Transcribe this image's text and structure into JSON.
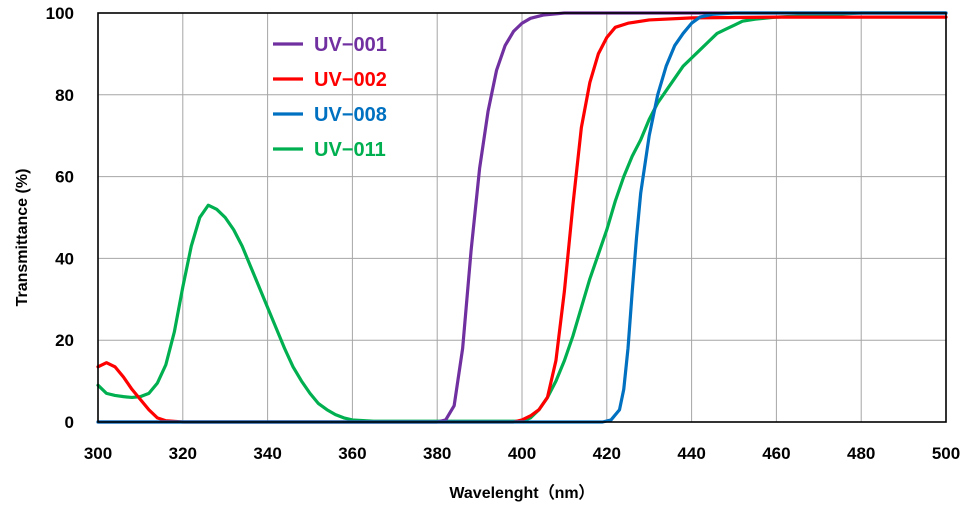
{
  "chart_data": {
    "type": "line",
    "xlabel": "Wavelenght（nm）",
    "ylabel": "Transmittance (%)",
    "xlim": [
      300,
      500
    ],
    "ylim": [
      0,
      100
    ],
    "x_ticks": [
      300,
      320,
      340,
      360,
      380,
      400,
      420,
      440,
      460,
      480,
      500
    ],
    "y_ticks": [
      0,
      20,
      40,
      60,
      80,
      100
    ],
    "grid": true,
    "legend_position": "top-left",
    "series": [
      {
        "name": "UV−001",
        "color": "#7030a0",
        "points": [
          [
            300,
            0
          ],
          [
            380,
            0
          ],
          [
            382,
            0.5
          ],
          [
            384,
            4
          ],
          [
            386,
            18
          ],
          [
            388,
            42
          ],
          [
            390,
            62
          ],
          [
            392,
            76
          ],
          [
            394,
            86
          ],
          [
            396,
            92
          ],
          [
            398,
            95.5
          ],
          [
            400,
            97.5
          ],
          [
            402,
            98.7
          ],
          [
            405,
            99.5
          ],
          [
            410,
            100
          ],
          [
            500,
            100
          ]
        ]
      },
      {
        "name": "UV−002",
        "color": "#ff0000",
        "points": [
          [
            300,
            13.5
          ],
          [
            302,
            14.5
          ],
          [
            304,
            13.5
          ],
          [
            306,
            11
          ],
          [
            308,
            8
          ],
          [
            310,
            5.5
          ],
          [
            312,
            3
          ],
          [
            314,
            1
          ],
          [
            316,
            0.3
          ],
          [
            320,
            0
          ],
          [
            398,
            0
          ],
          [
            400,
            0.5
          ],
          [
            402,
            1.5
          ],
          [
            404,
            3
          ],
          [
            406,
            6
          ],
          [
            408,
            15
          ],
          [
            410,
            32
          ],
          [
            412,
            53
          ],
          [
            414,
            72
          ],
          [
            416,
            83
          ],
          [
            418,
            90
          ],
          [
            420,
            94
          ],
          [
            422,
            96.5
          ],
          [
            425,
            97.5
          ],
          [
            430,
            98.3
          ],
          [
            440,
            98.8
          ],
          [
            460,
            99
          ],
          [
            500,
            99
          ]
        ]
      },
      {
        "name": "UV−008",
        "color": "#0070c0",
        "points": [
          [
            300,
            0
          ],
          [
            419,
            0
          ],
          [
            421,
            0.5
          ],
          [
            423,
            3
          ],
          [
            424,
            8
          ],
          [
            425,
            18
          ],
          [
            426,
            32
          ],
          [
            427,
            45
          ],
          [
            428,
            56
          ],
          [
            430,
            70
          ],
          [
            432,
            80
          ],
          [
            434,
            87
          ],
          [
            436,
            92
          ],
          [
            438,
            95
          ],
          [
            440,
            97.5
          ],
          [
            442,
            99
          ],
          [
            445,
            99.7
          ],
          [
            450,
            100
          ],
          [
            500,
            100
          ]
        ]
      },
      {
        "name": "UV−011",
        "color": "#00b050",
        "points": [
          [
            300,
            9
          ],
          [
            302,
            7
          ],
          [
            304,
            6.5
          ],
          [
            306,
            6.2
          ],
          [
            308,
            6
          ],
          [
            310,
            6.2
          ],
          [
            312,
            7
          ],
          [
            314,
            9.5
          ],
          [
            316,
            14
          ],
          [
            318,
            22
          ],
          [
            320,
            33
          ],
          [
            322,
            43
          ],
          [
            324,
            50
          ],
          [
            326,
            53
          ],
          [
            328,
            52
          ],
          [
            330,
            50
          ],
          [
            332,
            47
          ],
          [
            334,
            43
          ],
          [
            336,
            38
          ],
          [
            338,
            33
          ],
          [
            340,
            28
          ],
          [
            342,
            23
          ],
          [
            344,
            18
          ],
          [
            346,
            13.5
          ],
          [
            348,
            10
          ],
          [
            350,
            7
          ],
          [
            352,
            4.5
          ],
          [
            354,
            3
          ],
          [
            356,
            1.8
          ],
          [
            358,
            1
          ],
          [
            360,
            0.5
          ],
          [
            365,
            0.2
          ],
          [
            380,
            0.2
          ],
          [
            400,
            0.2
          ],
          [
            402,
            1
          ],
          [
            404,
            3
          ],
          [
            406,
            6
          ],
          [
            408,
            10
          ],
          [
            410,
            15
          ],
          [
            412,
            21
          ],
          [
            414,
            28
          ],
          [
            416,
            35
          ],
          [
            418,
            41
          ],
          [
            420,
            47
          ],
          [
            422,
            54
          ],
          [
            424,
            60
          ],
          [
            426,
            65
          ],
          [
            428,
            69
          ],
          [
            430,
            74
          ],
          [
            432,
            78
          ],
          [
            434,
            81
          ],
          [
            436,
            84
          ],
          [
            438,
            87
          ],
          [
            440,
            89
          ],
          [
            442,
            91
          ],
          [
            444,
            93
          ],
          [
            446,
            95
          ],
          [
            448,
            96
          ],
          [
            450,
            97
          ],
          [
            452,
            98
          ],
          [
            455,
            98.5
          ],
          [
            460,
            99
          ],
          [
            470,
            99.5
          ],
          [
            480,
            100
          ],
          [
            500,
            100
          ]
        ]
      }
    ]
  }
}
